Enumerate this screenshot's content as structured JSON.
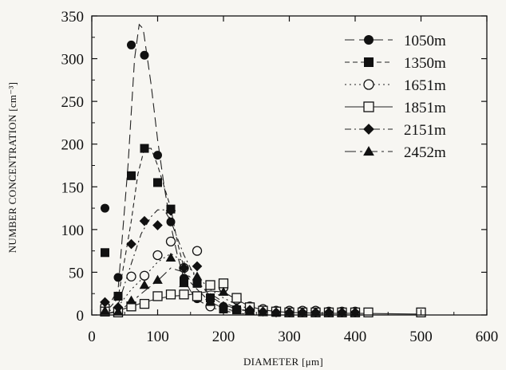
{
  "chart_data": {
    "type": "scatter",
    "xlabel": "DIAMETER [μm]",
    "ylabel": "NUMBER CONCENTRATION [cm⁻³]",
    "xlim": [
      0,
      600
    ],
    "ylim": [
      0,
      350
    ],
    "xticks": [
      0,
      100,
      200,
      300,
      400,
      500,
      600
    ],
    "yticks": [
      0,
      50,
      100,
      150,
      200,
      250,
      300,
      350
    ],
    "grid": false,
    "legend_position": "top-right",
    "series": [
      {
        "name": "1050m",
        "marker": "filled-circle",
        "line_style": "long-dash",
        "points": [
          [
            20,
            125
          ],
          [
            40,
            44
          ],
          [
            60,
            316
          ],
          [
            80,
            304
          ],
          [
            100,
            187
          ],
          [
            120,
            109
          ],
          [
            140,
            43
          ],
          [
            160,
            19
          ],
          [
            180,
            12
          ],
          [
            200,
            10
          ],
          [
            220,
            7
          ],
          [
            240,
            6
          ],
          [
            260,
            5
          ],
          [
            280,
            4
          ],
          [
            300,
            3
          ],
          [
            320,
            3
          ],
          [
            340,
            3
          ],
          [
            360,
            3
          ],
          [
            380,
            3
          ],
          [
            400,
            3
          ]
        ],
        "fit": [
          [
            20,
            3
          ],
          [
            40,
            30
          ],
          [
            55,
            175
          ],
          [
            65,
            300
          ],
          [
            72,
            340
          ],
          [
            78,
            335
          ],
          [
            90,
            270
          ],
          [
            100,
            205
          ],
          [
            110,
            150
          ],
          [
            120,
            105
          ],
          [
            130,
            70
          ],
          [
            140,
            42
          ],
          [
            150,
            28
          ],
          [
            160,
            18
          ],
          [
            180,
            9
          ],
          [
            200,
            5
          ],
          [
            220,
            2
          ],
          [
            240,
            1
          ]
        ]
      },
      {
        "name": "1350m",
        "marker": "filled-square",
        "line_style": "short-dash",
        "points": [
          [
            20,
            73
          ],
          [
            40,
            22
          ],
          [
            60,
            163
          ],
          [
            80,
            195
          ],
          [
            100,
            155
          ],
          [
            120,
            124
          ],
          [
            140,
            39
          ],
          [
            160,
            37
          ],
          [
            180,
            20
          ],
          [
            200,
            7
          ],
          [
            220,
            6
          ],
          [
            240,
            5
          ],
          [
            260,
            4
          ],
          [
            280,
            3
          ],
          [
            300,
            3
          ],
          [
            320,
            3
          ],
          [
            340,
            3
          ],
          [
            360,
            3
          ],
          [
            380,
            3
          ],
          [
            400,
            3
          ]
        ],
        "fit": [
          [
            20,
            2
          ],
          [
            40,
            20
          ],
          [
            60,
            110
          ],
          [
            70,
            165
          ],
          [
            80,
            195
          ],
          [
            90,
            195
          ],
          [
            100,
            175
          ],
          [
            110,
            150
          ],
          [
            120,
            125
          ],
          [
            130,
            85
          ],
          [
            140,
            55
          ],
          [
            150,
            38
          ],
          [
            160,
            30
          ],
          [
            180,
            15
          ],
          [
            200,
            8
          ],
          [
            220,
            4
          ],
          [
            240,
            2
          ]
        ]
      },
      {
        "name": "1651m",
        "marker": "open-circle",
        "line_style": "dotted",
        "points": [
          [
            20,
            10
          ],
          [
            40,
            4
          ],
          [
            60,
            45
          ],
          [
            80,
            46
          ],
          [
            100,
            70
          ],
          [
            120,
            86
          ],
          [
            140,
            55
          ],
          [
            160,
            75
          ],
          [
            180,
            10
          ],
          [
            200,
            32
          ],
          [
            220,
            18
          ],
          [
            240,
            10
          ],
          [
            260,
            7
          ],
          [
            280,
            5
          ],
          [
            300,
            5
          ],
          [
            320,
            5
          ],
          [
            340,
            5
          ],
          [
            360,
            4
          ],
          [
            380,
            4
          ],
          [
            400,
            4
          ]
        ],
        "fit": [
          [
            20,
            2
          ],
          [
            40,
            10
          ],
          [
            60,
            30
          ],
          [
            80,
            45
          ],
          [
            100,
            62
          ],
          [
            120,
            72
          ],
          [
            140,
            62
          ],
          [
            160,
            45
          ],
          [
            180,
            30
          ],
          [
            200,
            20
          ],
          [
            220,
            12
          ],
          [
            240,
            7
          ],
          [
            260,
            4
          ]
        ]
      },
      {
        "name": "1851m",
        "marker": "open-square",
        "line_style": "solid",
        "points": [
          [
            20,
            4
          ],
          [
            40,
            3
          ],
          [
            60,
            10
          ],
          [
            80,
            13
          ],
          [
            100,
            22
          ],
          [
            120,
            24
          ],
          [
            140,
            24
          ],
          [
            160,
            22
          ],
          [
            180,
            35
          ],
          [
            200,
            37
          ],
          [
            220,
            20
          ],
          [
            240,
            9
          ],
          [
            260,
            5
          ],
          [
            280,
            4
          ],
          [
            300,
            3
          ],
          [
            320,
            3
          ],
          [
            340,
            3
          ],
          [
            360,
            3
          ],
          [
            380,
            3
          ],
          [
            400,
            3
          ],
          [
            420,
            3
          ],
          [
            500,
            3
          ]
        ],
        "fit": [
          [
            20,
            1
          ],
          [
            40,
            5
          ],
          [
            60,
            10
          ],
          [
            80,
            15
          ],
          [
            100,
            19
          ],
          [
            120,
            22
          ],
          [
            140,
            23
          ],
          [
            160,
            25
          ],
          [
            180,
            28
          ],
          [
            200,
            27
          ],
          [
            220,
            18
          ],
          [
            240,
            10
          ],
          [
            260,
            6
          ],
          [
            280,
            4
          ],
          [
            300,
            3
          ],
          [
            350,
            2
          ],
          [
            400,
            2
          ],
          [
            500,
            1
          ]
        ]
      },
      {
        "name": "2151m",
        "marker": "filled-diamond",
        "line_style": "dash-dot",
        "points": [
          [
            20,
            15
          ],
          [
            40,
            9
          ],
          [
            60,
            83
          ],
          [
            80,
            110
          ],
          [
            100,
            105
          ],
          [
            120,
            122
          ],
          [
            140,
            55
          ],
          [
            160,
            57
          ],
          [
            180,
            18
          ],
          [
            200,
            10
          ],
          [
            220,
            8
          ],
          [
            240,
            6
          ],
          [
            260,
            4
          ],
          [
            280,
            3
          ],
          [
            300,
            3
          ],
          [
            320,
            3
          ],
          [
            340,
            3
          ],
          [
            360,
            3
          ],
          [
            380,
            3
          ],
          [
            400,
            3
          ]
        ],
        "fit": [
          [
            20,
            2
          ],
          [
            40,
            12
          ],
          [
            60,
            60
          ],
          [
            75,
            95
          ],
          [
            90,
            115
          ],
          [
            100,
            123
          ],
          [
            110,
            123
          ],
          [
            120,
            110
          ],
          [
            140,
            70
          ],
          [
            160,
            40
          ],
          [
            180,
            22
          ],
          [
            200,
            12
          ],
          [
            220,
            7
          ],
          [
            240,
            4
          ]
        ]
      },
      {
        "name": "2452m",
        "marker": "filled-triangle",
        "line_style": "long-dash-dot",
        "points": [
          [
            20,
            5
          ],
          [
            40,
            4
          ],
          [
            60,
            17
          ],
          [
            80,
            35
          ],
          [
            100,
            41
          ],
          [
            120,
            67
          ],
          [
            140,
            37
          ],
          [
            160,
            45
          ],
          [
            180,
            15
          ],
          [
            200,
            27
          ],
          [
            220,
            8
          ],
          [
            240,
            5
          ],
          [
            260,
            3
          ],
          [
            280,
            3
          ],
          [
            300,
            3
          ],
          [
            320,
            3
          ],
          [
            340,
            3
          ],
          [
            360,
            3
          ],
          [
            380,
            3
          ],
          [
            400,
            3
          ]
        ],
        "fit": [
          [
            20,
            1
          ],
          [
            40,
            4
          ],
          [
            60,
            15
          ],
          [
            80,
            28
          ],
          [
            100,
            40
          ],
          [
            120,
            55
          ],
          [
            140,
            50
          ],
          [
            160,
            38
          ],
          [
            180,
            25
          ],
          [
            200,
            15
          ],
          [
            220,
            8
          ],
          [
            240,
            4
          ]
        ]
      }
    ]
  }
}
